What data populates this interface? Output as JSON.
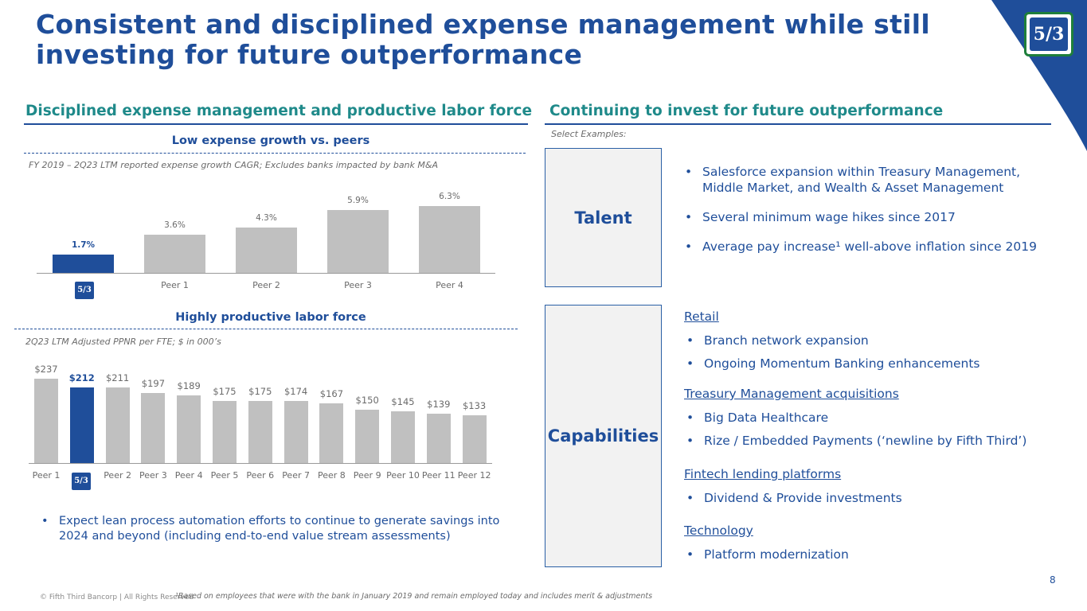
{
  "title": "Consistent and disciplined expense management while still investing for future outperformance",
  "logo_text": "5/3",
  "left_section": {
    "heading": "Disciplined expense management and productive labor force",
    "chart1_title": "Low expense growth vs. peers",
    "chart1_note": "FY 2019 – 2Q23 LTM reported expense growth CAGR; Excludes banks impacted by bank M&A",
    "chart2_title": "Highly productive labor force",
    "chart2_note": "2Q23 LTM Adjusted PPNR per FTE; $ in 000’s",
    "bullet": "Expect lean process automation efforts to continue to generate savings into 2024 and beyond (including end-to-end value stream assessments)"
  },
  "chart_data": [
    {
      "type": "bar",
      "title": "Low expense growth vs. peers",
      "subtitle": "FY 2019 – 2Q23 LTM reported expense growth CAGR; Excludes banks impacted by bank M&A",
      "categories": [
        "Fifth Third",
        "Peer 1",
        "Peer 2",
        "Peer 3",
        "Peer 4"
      ],
      "values": [
        1.7,
        3.6,
        4.3,
        5.9,
        6.3
      ],
      "labels": [
        "1.7%",
        "3.6%",
        "4.3%",
        "5.9%",
        "6.3%"
      ],
      "highlight_index": 0,
      "ylim": [
        0,
        7
      ],
      "colors": {
        "highlight": "#1f4e9a",
        "default": "#c0c0c0"
      }
    },
    {
      "type": "bar",
      "title": "Highly productive labor force",
      "subtitle": "2Q23 LTM Adjusted PPNR per FTE; $ in 000’s",
      "categories": [
        "Peer 1",
        "Fifth Third",
        "Peer 2",
        "Peer 3",
        "Peer 4",
        "Peer 5",
        "Peer 6",
        "Peer 7",
        "Peer 8",
        "Peer 9",
        "Peer 10",
        "Peer 11",
        "Peer 12"
      ],
      "values": [
        237,
        212,
        211,
        197,
        189,
        175,
        175,
        174,
        167,
        150,
        145,
        139,
        133
      ],
      "labels": [
        "$237",
        "$212",
        "$211",
        "$197",
        "$189",
        "$175",
        "$175",
        "$174",
        "$167",
        "$150",
        "$145",
        "$139",
        "$133"
      ],
      "highlight_index": 1,
      "ylim": [
        0,
        250
      ],
      "colors": {
        "highlight": "#1f4e9a",
        "default": "#c0c0c0"
      }
    }
  ],
  "right_section": {
    "heading": "Continuing to invest for future outperformance",
    "select_examples": "Select Examples:",
    "talent": {
      "label": "Talent",
      "bullets": [
        "Salesforce expansion within Treasury Management, Middle Market, and Wealth & Asset Management",
        "Several minimum wage hikes since 2017",
        "Average pay increase¹ well-above inflation since 2019"
      ]
    },
    "capabilities": {
      "label": "Capabilities",
      "groups": [
        {
          "heading": "Retail",
          "bullets": [
            "Branch network expansion",
            "Ongoing Momentum Banking enhancements"
          ]
        },
        {
          "heading": "Treasury Management acquisitions",
          "bullets": [
            "Big Data Healthcare",
            "Rize / Embedded Payments (‘newline by Fifth Third’)"
          ]
        },
        {
          "heading": "Fintech lending platforms",
          "bullets": [
            "Dividend & Provide investments"
          ]
        },
        {
          "heading": "Technology",
          "bullets": [
            "Platform modernization"
          ]
        }
      ]
    }
  },
  "footer": {
    "copyright": "© Fifth Third Bancorp | All Rights Reserved",
    "footnote": "¹Based on employees that were with the bank in January 2019 and remain employed today and includes merit & adjustments",
    "page_number": "8"
  },
  "colors": {
    "brand_blue": "#1f4e9a",
    "teal": "#1f8a8a",
    "green": "#1e7f3b",
    "bar_gray": "#c0c0c0"
  }
}
